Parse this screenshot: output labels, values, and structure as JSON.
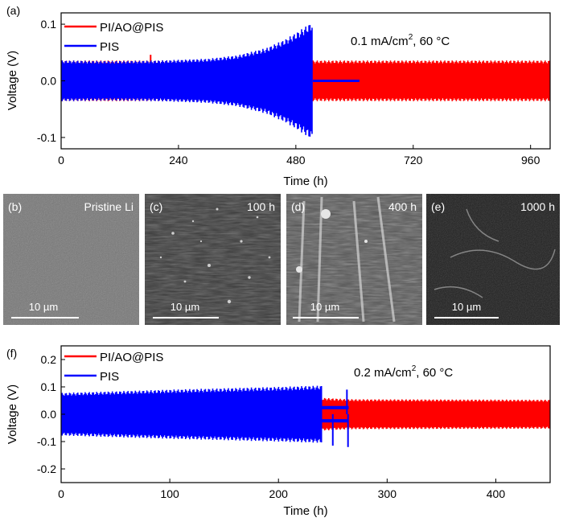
{
  "chart_data": [
    {
      "id": "a",
      "type": "line",
      "panel_label": "(a)",
      "title": "",
      "xlabel": "Time (h)",
      "ylabel": "Voltage (V)",
      "xlim": [
        0,
        1000
      ],
      "ylim": [
        -0.12,
        0.12
      ],
      "xticks": [
        0,
        240,
        480,
        720,
        960
      ],
      "xtick_labels": [
        "0",
        "240",
        "480",
        "720",
        "960"
      ],
      "yticks": [
        -0.1,
        0.0,
        0.1
      ],
      "ytick_labels": [
        "-0.1",
        "0.0",
        "0.1"
      ],
      "annotation": {
        "text": "0.1 mA/cm",
        "sup": "2",
        "tail": ", 60 °C"
      },
      "series": [
        {
          "name": "PI/AO@PIS",
          "color": "#ff0000",
          "x_range": [
            0,
            1000
          ],
          "amplitude": 0.036,
          "spikes": [
            {
              "x": 183,
              "y": 0.046
            }
          ]
        },
        {
          "name": "PIS",
          "color": "#0000ff",
          "x_range": [
            0,
            515
          ],
          "envelope_x": [
            0,
            100,
            200,
            300,
            360,
            420,
            460,
            490,
            515
          ],
          "envelope_amp": [
            0.036,
            0.035,
            0.036,
            0.039,
            0.045,
            0.058,
            0.074,
            0.09,
            0.105
          ],
          "tail": {
            "x": [
              515,
              610
            ],
            "y": 0.0
          }
        }
      ]
    },
    {
      "id": "f",
      "type": "line",
      "panel_label": "(f)",
      "title": "",
      "xlabel": "Time (h)",
      "ylabel": "Voltage (V)",
      "xlim": [
        0,
        450
      ],
      "ylim": [
        -0.25,
        0.25
      ],
      "xticks": [
        0,
        100,
        200,
        300,
        400
      ],
      "xtick_labels": [
        "0",
        "100",
        "200",
        "300",
        "400"
      ],
      "yticks": [
        -0.2,
        -0.1,
        0.0,
        0.1,
        0.2
      ],
      "ytick_labels": [
        "-0.2",
        "-0.1",
        "0.0",
        "0.1",
        "0.2"
      ],
      "annotation": {
        "text": "0.2 mA/cm",
        "sup": "2",
        "tail": ", 60 °C"
      },
      "series": [
        {
          "name": "PI/AO@PIS",
          "color": "#ff0000",
          "x_range": [
            0,
            450
          ],
          "envelope_x": [
            0,
            240,
            265,
            450
          ],
          "envelope_amp": [
            0.06,
            0.06,
            0.055,
            0.053
          ]
        },
        {
          "name": "PIS",
          "color": "#0000ff",
          "x_range": [
            0,
            240
          ],
          "envelope_x": [
            0,
            100,
            200,
            240
          ],
          "envelope_amp": [
            0.078,
            0.09,
            0.1,
            0.105
          ],
          "inner_segment": {
            "x": [
              240,
              265
            ],
            "amp": 0.03
          },
          "spikes": [
            {
              "x": 250,
              "y": -0.115
            },
            {
              "x": 263,
              "y": 0.09
            },
            {
              "x": 264,
              "y": -0.12
            }
          ]
        }
      ]
    }
  ],
  "sem_panels": [
    {
      "panel": "(b)",
      "label": "Pristine Li",
      "scale_bar": "10 µm"
    },
    {
      "panel": "(c)",
      "label": "100 h",
      "scale_bar": "10 µm"
    },
    {
      "panel": "(d)",
      "label": "400 h",
      "scale_bar": "10 µm"
    },
    {
      "panel": "(e)",
      "label": "1000 h",
      "scale_bar": "10 µm"
    }
  ]
}
